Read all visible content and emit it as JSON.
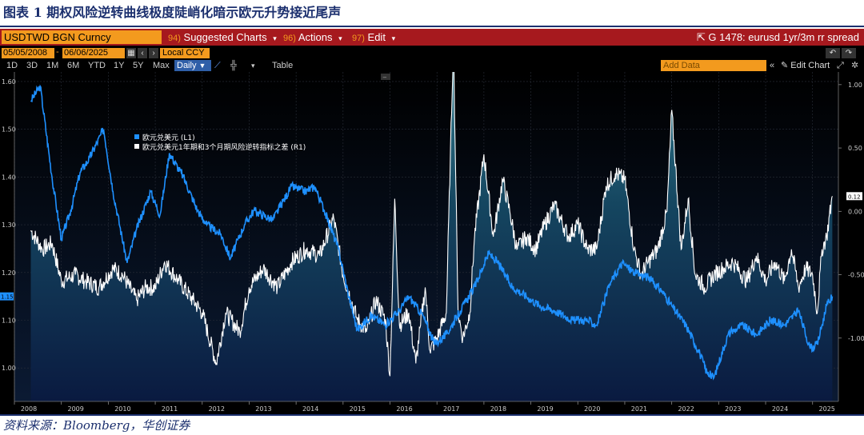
{
  "caption": "图表 1 期权风险逆转曲线极度陡峭化暗示欧元升势接近尾声",
  "source": "资料来源：Bloomberg，华创证券",
  "terminal": {
    "ticker": "USDTWD BGN Curncy",
    "menus": [
      {
        "num": "94)",
        "label": "Suggested Charts"
      },
      {
        "num": "96)",
        "label": "Actions"
      },
      {
        "num": "97)",
        "label": "Edit"
      }
    ],
    "chart_title": "G 1478: eurusd 1yr/3m rr spread",
    "start_date": "05/05/2008",
    "end_date": "06/06/2025",
    "currency": "Local CCY",
    "ranges": [
      "1D",
      "3D",
      "1M",
      "6M",
      "YTD",
      "1Y",
      "5Y",
      "Max"
    ],
    "frequency": "Daily",
    "table_label": "Table",
    "add_data_placeholder": "Add Data",
    "edit_chart_label": "Edit Chart"
  },
  "chart_data": {
    "type": "line",
    "x": [
      "2008",
      "2009",
      "2010",
      "2011",
      "2012",
      "2013",
      "2014",
      "2015",
      "2016",
      "2017",
      "2018",
      "2019",
      "2020",
      "2021",
      "2022",
      "2023",
      "2024",
      "2025"
    ],
    "left_axis": {
      "ticks": [
        "1.60",
        "1.50",
        "1.40",
        "1.30",
        "1.20",
        "1.10",
        "1.00"
      ],
      "range": [
        0.93,
        1.62
      ],
      "last_value_label": "1.15"
    },
    "right_axis": {
      "ticks": [
        "1.00",
        "0.50",
        "0.00",
        "-0.50",
        "-1.00"
      ],
      "range": [
        -1.5,
        1.1
      ],
      "last_value_label": "0.12"
    },
    "series": [
      {
        "name": "欧元兑美元 (L1)",
        "axis": "left",
        "color": "#1e90ff",
        "style": "line",
        "x": [
          2008.35,
          2008.55,
          2008.8,
          2009.0,
          2009.2,
          2009.4,
          2009.6,
          2009.9,
          2010.1,
          2010.4,
          2010.6,
          2010.9,
          2011.1,
          2011.3,
          2011.6,
          2011.9,
          2012.1,
          2012.4,
          2012.6,
          2012.9,
          2013.1,
          2013.5,
          2013.9,
          2014.2,
          2014.4,
          2014.6,
          2014.9,
          2015.1,
          2015.3,
          2015.6,
          2015.9,
          2016.2,
          2016.4,
          2016.7,
          2016.95,
          2017.2,
          2017.5,
          2017.8,
          2018.1,
          2018.3,
          2018.6,
          2018.9,
          2019.2,
          2019.5,
          2019.9,
          2020.2,
          2020.4,
          2020.7,
          2020.95,
          2021.2,
          2021.5,
          2021.8,
          2022.0,
          2022.3,
          2022.6,
          2022.75,
          2022.9,
          2023.2,
          2023.5,
          2023.8,
          2024.1,
          2024.4,
          2024.7,
          2024.95,
          2025.1,
          2025.3,
          2025.42
        ],
        "values": [
          1.56,
          1.59,
          1.4,
          1.27,
          1.33,
          1.41,
          1.44,
          1.5,
          1.37,
          1.22,
          1.29,
          1.37,
          1.32,
          1.45,
          1.4,
          1.33,
          1.3,
          1.28,
          1.23,
          1.3,
          1.33,
          1.31,
          1.38,
          1.37,
          1.38,
          1.33,
          1.25,
          1.16,
          1.08,
          1.11,
          1.09,
          1.12,
          1.15,
          1.11,
          1.05,
          1.07,
          1.12,
          1.17,
          1.24,
          1.22,
          1.17,
          1.15,
          1.13,
          1.12,
          1.1,
          1.1,
          1.09,
          1.18,
          1.22,
          1.2,
          1.19,
          1.16,
          1.13,
          1.09,
          1.03,
          0.99,
          0.98,
          1.07,
          1.09,
          1.07,
          1.1,
          1.09,
          1.12,
          1.04,
          1.05,
          1.13,
          1.15
        ]
      },
      {
        "name": "欧元兑美元1年期和3个月期风险逆转指标之差 (R1)",
        "axis": "right",
        "color": "#ffffff",
        "style": "area",
        "x": [
          2008.35,
          2008.6,
          2008.8,
          2009.0,
          2009.3,
          2009.5,
          2009.8,
          2010.1,
          2010.3,
          2010.6,
          2010.8,
          2011.0,
          2011.2,
          2011.5,
          2011.8,
          2012.0,
          2012.3,
          2012.5,
          2012.8,
          2013.0,
          2013.3,
          2013.6,
          2013.9,
          2014.2,
          2014.5,
          2014.8,
          2015.0,
          2015.3,
          2015.5,
          2015.7,
          2015.9,
          2016.0,
          2016.1,
          2016.2,
          2016.4,
          2016.55,
          2016.65,
          2016.75,
          2016.85,
          2017.0,
          2017.2,
          2017.35,
          2017.45,
          2017.55,
          2017.7,
          2017.8,
          2018.0,
          2018.2,
          2018.4,
          2018.55,
          2018.7,
          2018.9,
          2019.1,
          2019.3,
          2019.5,
          2019.8,
          2020.0,
          2020.2,
          2020.4,
          2020.6,
          2020.8,
          2021.0,
          2021.2,
          2021.35,
          2021.5,
          2021.7,
          2021.9,
          2022.0,
          2022.2,
          2022.35,
          2022.5,
          2022.7,
          2022.9,
          2023.1,
          2023.3,
          2023.6,
          2023.8,
          2024.0,
          2024.2,
          2024.4,
          2024.55,
          2024.7,
          2024.85,
          2025.0,
          2025.1,
          2025.2,
          2025.3,
          2025.42
        ],
        "values": [
          -0.15,
          -0.3,
          -0.25,
          -0.55,
          -0.5,
          -0.55,
          -0.6,
          -0.45,
          -0.5,
          -0.7,
          -0.6,
          -0.6,
          -0.4,
          -0.55,
          -0.7,
          -0.8,
          -1.2,
          -0.8,
          -0.95,
          -0.6,
          -0.45,
          -0.6,
          -0.4,
          -0.3,
          -0.35,
          -0.05,
          -0.5,
          -0.85,
          -0.95,
          -0.7,
          -0.85,
          -1.3,
          0.1,
          -0.9,
          -0.8,
          -1.2,
          -0.9,
          -0.6,
          -1.1,
          -1.0,
          -0.8,
          1.35,
          -0.8,
          -1.0,
          -0.8,
          -0.2,
          0.45,
          -0.2,
          0.25,
          0.0,
          -0.3,
          -0.2,
          -0.3,
          -0.1,
          0.05,
          -0.2,
          -0.1,
          -0.3,
          -0.3,
          0.2,
          0.3,
          0.25,
          -0.3,
          -0.5,
          -0.4,
          -0.3,
          0.0,
          0.8,
          -0.3,
          0.1,
          -0.5,
          -0.6,
          -0.5,
          -0.45,
          -0.4,
          -0.55,
          -0.35,
          -0.55,
          -0.4,
          -0.55,
          -0.3,
          -0.6,
          -0.45,
          -0.5,
          -0.8,
          -0.3,
          -0.2,
          0.12
        ]
      }
    ]
  }
}
